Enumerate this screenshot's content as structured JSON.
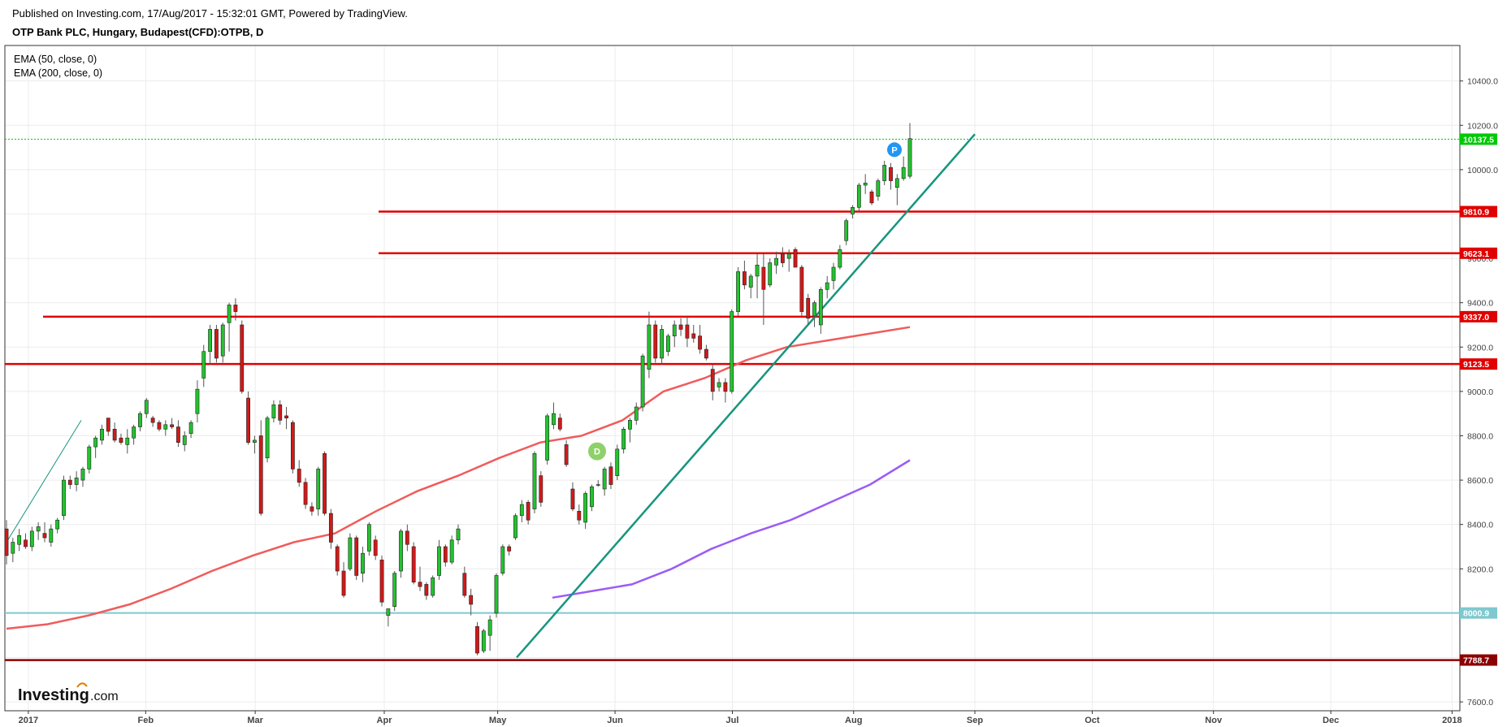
{
  "header": {
    "published": "Published on Investing.com, 17/Aug/2017 - 15:32:01 GMT, Powered by TradingView.",
    "symbol": "OTP Bank PLC, Hungary, Budapest(CFD):OTPB, D"
  },
  "indicators": [
    "EMA (50, close, 0)",
    "EMA (200, close, 0)"
  ],
  "logo": {
    "main": "Investing",
    "suffix": ".com"
  },
  "chart_data": {
    "type": "candlestick",
    "x_range": [
      "2016-12-27",
      "2018-01-03"
    ],
    "ylim": [
      7560,
      10560
    ],
    "y_ticks": [
      7600,
      7800,
      8000,
      8200,
      8400,
      8600,
      8800,
      9000,
      9200,
      9400,
      9600,
      9800,
      10000,
      10200,
      10400
    ],
    "x_ticks": [
      {
        "date": "2017-01-02",
        "label": "2017"
      },
      {
        "date": "2017-02-01",
        "label": "Feb"
      },
      {
        "date": "2017-03-01",
        "label": "Mar"
      },
      {
        "date": "2017-04-03",
        "label": "Apr"
      },
      {
        "date": "2017-05-02",
        "label": "May"
      },
      {
        "date": "2017-06-01",
        "label": "Jun"
      },
      {
        "date": "2017-07-01",
        "label": "Jul"
      },
      {
        "date": "2017-08-01",
        "label": "Aug"
      },
      {
        "date": "2017-09-01",
        "label": "Sep"
      },
      {
        "date": "2017-10-01",
        "label": "Oct"
      },
      {
        "date": "2017-11-01",
        "label": "Nov"
      },
      {
        "date": "2017-12-01",
        "label": "Dec"
      },
      {
        "date": "2018-01-01",
        "label": "2018"
      }
    ],
    "price_labels": [
      {
        "value": 10137.5,
        "label": "10137.5",
        "color": "#00c805"
      },
      {
        "value": 9810.9,
        "label": "9810.9",
        "color": "#e00000"
      },
      {
        "value": 9623.1,
        "label": "9623.1",
        "color": "#e00000"
      },
      {
        "value": 9337.0,
        "label": "9337.0",
        "color": "#e00000"
      },
      {
        "value": 9123.5,
        "label": "9123.5",
        "color": "#e00000"
      },
      {
        "value": 8000.9,
        "label": "8000.9",
        "color": "#7fc8cf"
      },
      {
        "value": 7788.7,
        "label": "7788.7",
        "color": "#8b0000"
      }
    ],
    "candles_ohlc": [
      [
        8380,
        8420,
        8220,
        8260
      ],
      [
        8270,
        8340,
        8230,
        8320
      ],
      [
        8310,
        8380,
        8280,
        8350
      ],
      [
        8330,
        8360,
        8290,
        8300
      ],
      [
        8300,
        8390,
        8280,
        8370
      ],
      [
        8370,
        8410,
        8330,
        8390
      ],
      [
        8360,
        8410,
        8320,
        8340
      ],
      [
        8320,
        8400,
        8300,
        8380
      ],
      [
        8380,
        8430,
        8360,
        8420
      ],
      [
        8440,
        8620,
        8420,
        8600
      ],
      [
        8600,
        8620,
        8560,
        8580
      ],
      [
        8580,
        8640,
        8550,
        8610
      ],
      [
        8600,
        8660,
        8570,
        8650
      ],
      [
        8650,
        8760,
        8630,
        8750
      ],
      [
        8750,
        8800,
        8700,
        8790
      ],
      [
        8780,
        8850,
        8760,
        8830
      ],
      [
        8880,
        8880,
        8800,
        8820
      ],
      [
        8830,
        8860,
        8770,
        8780
      ],
      [
        8790,
        8810,
        8760,
        8770
      ],
      [
        8760,
        8830,
        8720,
        8790
      ],
      [
        8790,
        8850,
        8760,
        8840
      ],
      [
        8840,
        8910,
        8820,
        8900
      ],
      [
        8900,
        8970,
        8880,
        8960
      ],
      [
        8880,
        8890,
        8840,
        8860
      ],
      [
        8860,
        8870,
        8820,
        8830
      ],
      [
        8830,
        8870,
        8800,
        8850
      ],
      [
        8850,
        8880,
        8830,
        8840
      ],
      [
        8840,
        8870,
        8750,
        8770
      ],
      [
        8760,
        8820,
        8730,
        8800
      ],
      [
        8810,
        8870,
        8790,
        8860
      ],
      [
        8900,
        9050,
        8860,
        9010
      ],
      [
        9060,
        9210,
        9020,
        9180
      ],
      [
        9180,
        9300,
        9120,
        9280
      ],
      [
        9280,
        9300,
        9130,
        9150
      ],
      [
        9160,
        9310,
        9130,
        9300
      ],
      [
        9310,
        9400,
        9180,
        9390
      ],
      [
        9390,
        9420,
        9320,
        9360
      ],
      [
        9300,
        9320,
        8990,
        9000
      ],
      [
        8970,
        9000,
        8760,
        8770
      ],
      [
        8770,
        8800,
        8720,
        8780
      ],
      [
        8800,
        8870,
        8440,
        8450
      ],
      [
        8700,
        8890,
        8680,
        8880
      ],
      [
        8880,
        8960,
        8860,
        8940
      ],
      [
        8940,
        8960,
        8850,
        8870
      ],
      [
        8890,
        8930,
        8830,
        8880
      ],
      [
        8860,
        8870,
        8630,
        8650
      ],
      [
        8650,
        8690,
        8570,
        8590
      ],
      [
        8590,
        8610,
        8470,
        8490
      ],
      [
        8480,
        8500,
        8440,
        8460
      ],
      [
        8470,
        8660,
        8440,
        8650
      ],
      [
        8720,
        8730,
        8440,
        8450
      ],
      [
        8450,
        8470,
        8290,
        8320
      ],
      [
        8300,
        8310,
        8170,
        8190
      ],
      [
        8190,
        8230,
        8070,
        8080
      ],
      [
        8200,
        8360,
        8190,
        8340
      ],
      [
        8340,
        8350,
        8150,
        8170
      ],
      [
        8180,
        8300,
        8140,
        8270
      ],
      [
        8280,
        8410,
        8260,
        8400
      ],
      [
        8330,
        8350,
        8240,
        8260
      ],
      [
        8240,
        8260,
        8030,
        8050
      ],
      [
        7990,
        8010,
        7940,
        8020
      ],
      [
        8030,
        8190,
        8010,
        8180
      ],
      [
        8190,
        8380,
        8160,
        8370
      ],
      [
        8370,
        8400,
        8280,
        8310
      ],
      [
        8300,
        8320,
        8130,
        8140
      ],
      [
        8140,
        8210,
        8100,
        8120
      ],
      [
        8130,
        8140,
        8060,
        8080
      ],
      [
        8080,
        8170,
        8070,
        8160
      ],
      [
        8170,
        8330,
        8150,
        8300
      ],
      [
        8300,
        8310,
        8210,
        8230
      ],
      [
        8230,
        8350,
        8220,
        8330
      ],
      [
        8330,
        8400,
        8310,
        8380
      ],
      [
        8180,
        8210,
        8070,
        8080
      ],
      [
        8080,
        8110,
        7990,
        8040
      ],
      [
        7940,
        7960,
        7810,
        7820
      ],
      [
        7830,
        7930,
        7820,
        7920
      ],
      [
        7900,
        7990,
        7830,
        7970
      ],
      [
        8000,
        8180,
        7980,
        8170
      ],
      [
        8180,
        8310,
        8170,
        8300
      ],
      [
        8300,
        8310,
        8260,
        8280
      ],
      [
        8340,
        8450,
        8330,
        8440
      ],
      [
        8440,
        8510,
        8410,
        8490
      ],
      [
        8500,
        8510,
        8400,
        8420
      ],
      [
        8470,
        8730,
        8450,
        8720
      ],
      [
        8620,
        8640,
        8480,
        8500
      ],
      [
        8690,
        8900,
        8670,
        8890
      ],
      [
        8850,
        8950,
        8830,
        8900
      ],
      [
        8880,
        8900,
        8820,
        8830
      ],
      [
        8760,
        8780,
        8660,
        8670
      ],
      [
        8560,
        8590,
        8460,
        8470
      ],
      [
        8460,
        8490,
        8400,
        8420
      ],
      [
        8410,
        8550,
        8380,
        8540
      ],
      [
        8480,
        8580,
        8460,
        8570
      ],
      [
        8580,
        8600,
        8570,
        8580
      ],
      [
        8560,
        8660,
        8530,
        8650
      ],
      [
        8660,
        8680,
        8560,
        8580
      ],
      [
        8620,
        8760,
        8600,
        8740
      ],
      [
        8740,
        8840,
        8720,
        8830
      ],
      [
        8830,
        8880,
        8770,
        8870
      ],
      [
        8870,
        8950,
        8850,
        8930
      ],
      [
        8930,
        9170,
        8910,
        9160
      ],
      [
        9100,
        9360,
        9060,
        9300
      ],
      [
        9300,
        9320,
        9130,
        9150
      ],
      [
        9150,
        9300,
        9120,
        9280
      ],
      [
        9180,
        9260,
        9160,
        9250
      ],
      [
        9250,
        9320,
        9200,
        9300
      ],
      [
        9300,
        9330,
        9250,
        9280
      ],
      [
        9300,
        9340,
        9200,
        9240
      ],
      [
        9260,
        9300,
        9220,
        9240
      ],
      [
        9250,
        9300,
        9170,
        9190
      ],
      [
        9190,
        9210,
        9140,
        9150
      ],
      [
        9100,
        9120,
        8960,
        9000
      ],
      [
        9020,
        9060,
        9000,
        9040
      ],
      [
        9040,
        9060,
        8950,
        9000
      ],
      [
        9000,
        9370,
        8990,
        9360
      ],
      [
        9360,
        9560,
        9340,
        9540
      ],
      [
        9540,
        9590,
        9460,
        9480
      ],
      [
        9470,
        9530,
        9420,
        9520
      ],
      [
        9520,
        9620,
        9420,
        9570
      ],
      [
        9560,
        9620,
        9300,
        9460
      ],
      [
        9480,
        9600,
        9470,
        9580
      ],
      [
        9570,
        9630,
        9530,
        9600
      ],
      [
        9620,
        9650,
        9560,
        9580
      ],
      [
        9600,
        9640,
        9540,
        9620
      ],
      [
        9640,
        9650,
        9560,
        9560
      ],
      [
        9560,
        9570,
        9340,
        9360
      ],
      [
        9420,
        9440,
        9300,
        9330
      ],
      [
        9340,
        9410,
        9290,
        9400
      ],
      [
        9300,
        9470,
        9260,
        9460
      ],
      [
        9460,
        9520,
        9420,
        9490
      ],
      [
        9500,
        9580,
        9460,
        9560
      ],
      [
        9560,
        9660,
        9550,
        9640
      ],
      [
        9680,
        9780,
        9660,
        9770
      ],
      [
        9800,
        9840,
        9780,
        9830
      ],
      [
        9830,
        9940,
        9810,
        9930
      ],
      [
        9930,
        9980,
        9890,
        9940
      ],
      [
        9900,
        9910,
        9840,
        9850
      ],
      [
        9880,
        9960,
        9860,
        9950
      ],
      [
        9950,
        10040,
        9930,
        10020
      ],
      [
        10010,
        10030,
        9910,
        9950
      ],
      [
        9920,
        9980,
        9840,
        9960
      ],
      [
        9960,
        10060,
        9950,
        10010
      ],
      [
        9970,
        10210,
        9960,
        10140
      ]
    ],
    "ema50": [
      [
        7930,
        8030
      ],
      [
        7950,
        8115
      ],
      [
        7990,
        8200
      ],
      [
        8040,
        8300
      ],
      [
        8110,
        8420
      ],
      [
        8190,
        8540
      ],
      [
        8260,
        8640
      ],
      [
        8320,
        8700
      ],
      [
        8360,
        8740
      ],
      [
        8460,
        8800
      ],
      [
        8550,
        8840
      ],
      [
        8620,
        8870
      ],
      [
        8700,
        8880
      ],
      [
        8770,
        8900
      ],
      [
        8800,
        8910
      ],
      [
        8870,
        8940
      ],
      [
        9000,
        8970
      ],
      [
        9060,
        9020
      ],
      [
        9140,
        9090
      ],
      [
        9200,
        9180
      ],
      [
        9230,
        9270
      ],
      [
        9260,
        9380
      ],
      [
        9290,
        9470
      ]
    ],
    "ema200": [
      [
        8070,
        8200
      ],
      [
        8100,
        8240
      ],
      [
        8130,
        8290
      ],
      [
        8200,
        8360
      ],
      [
        8290,
        8410
      ],
      [
        8360,
        8450
      ],
      [
        8420,
        8500
      ],
      [
        8500,
        8570
      ],
      [
        8580,
        8640
      ],
      [
        8690,
        8700
      ]
    ],
    "trendlines": [
      [
        [
          7800,
          8500
        ],
        [
          10160,
          10400
        ]
      ],
      [
        [
          8190,
          8590
        ],
        [
          8250,
          8750
        ]
      ]
    ],
    "markers": [
      {
        "label": "D",
        "color": "#8ed16a"
      },
      {
        "label": "P",
        "color": "#2196f3"
      }
    ]
  }
}
